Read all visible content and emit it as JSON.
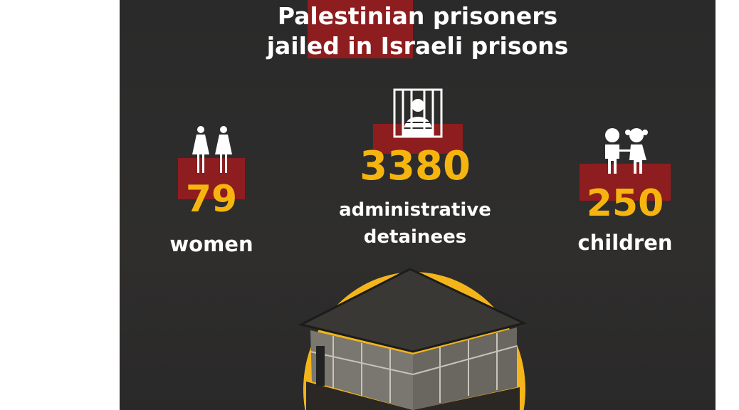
{
  "title": {
    "line1": "Palestinian prisoners",
    "line2": "jailed in Israeli prisons"
  },
  "stats": [
    {
      "number": "79",
      "label": "women",
      "icon": "women-icon"
    },
    {
      "number": "3380",
      "label_line1": "administrative",
      "label_line2": "detainees",
      "icon": "prisoner-behind-bars-icon"
    },
    {
      "number": "250",
      "label": "children",
      "icon": "children-icon"
    }
  ],
  "colors": {
    "accent_red": "#8e1d1f",
    "number_yellow": "#f6b50e",
    "background": "#2b2b2b"
  }
}
